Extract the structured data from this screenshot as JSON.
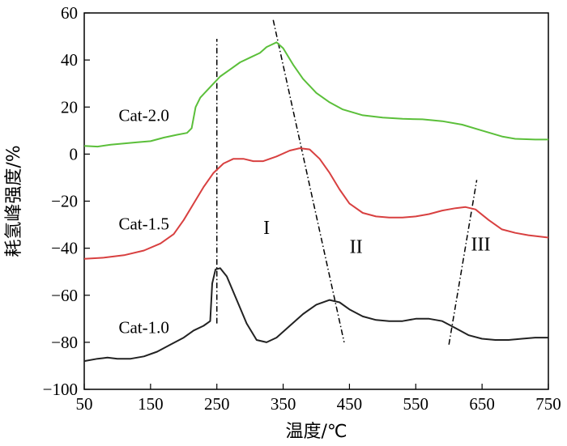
{
  "chart_data": {
    "type": "line",
    "title": "",
    "xlabel": "温度/℃",
    "ylabel": "耗氢峰强度/%",
    "xlim": [
      50,
      750
    ],
    "ylim": [
      -100,
      60
    ],
    "xticks": [
      50,
      150,
      250,
      350,
      450,
      550,
      650,
      750
    ],
    "yticks": [
      -100,
      -80,
      -60,
      -40,
      -20,
      0,
      20,
      40,
      60
    ],
    "grid": false,
    "legend": "none",
    "series": [
      {
        "name": "Cat-2.0",
        "color": "#5bbf3a",
        "points": [
          [
            50,
            3.5
          ],
          [
            70,
            3.2
          ],
          [
            90,
            4.0
          ],
          [
            110,
            4.5
          ],
          [
            130,
            5.0
          ],
          [
            150,
            5.5
          ],
          [
            170,
            7.0
          ],
          [
            190,
            8.2
          ],
          [
            205,
            9.0
          ],
          [
            212,
            11
          ],
          [
            218,
            20
          ],
          [
            225,
            24
          ],
          [
            235,
            27
          ],
          [
            245,
            30
          ],
          [
            255,
            33
          ],
          [
            270,
            36
          ],
          [
            285,
            39
          ],
          [
            300,
            41
          ],
          [
            315,
            43
          ],
          [
            325,
            45.5
          ],
          [
            340,
            47.5
          ],
          [
            350,
            45
          ],
          [
            365,
            38
          ],
          [
            380,
            32
          ],
          [
            400,
            26
          ],
          [
            420,
            22
          ],
          [
            440,
            19
          ],
          [
            470,
            16.5
          ],
          [
            500,
            15.5
          ],
          [
            530,
            15
          ],
          [
            560,
            14.8
          ],
          [
            590,
            14
          ],
          [
            620,
            12.5
          ],
          [
            650,
            10
          ],
          [
            680,
            7.5
          ],
          [
            700,
            6.5
          ],
          [
            730,
            6.2
          ],
          [
            750,
            6.2
          ]
        ]
      },
      {
        "name": "Cat-1.5",
        "color": "#d84040",
        "points": [
          [
            50,
            -44.5
          ],
          [
            80,
            -44
          ],
          [
            110,
            -43
          ],
          [
            140,
            -41
          ],
          [
            165,
            -38
          ],
          [
            185,
            -34
          ],
          [
            200,
            -28
          ],
          [
            215,
            -21
          ],
          [
            230,
            -14
          ],
          [
            245,
            -8
          ],
          [
            260,
            -4
          ],
          [
            275,
            -2
          ],
          [
            290,
            -2
          ],
          [
            305,
            -3
          ],
          [
            320,
            -3
          ],
          [
            340,
            -1
          ],
          [
            360,
            1.5
          ],
          [
            375,
            2.5
          ],
          [
            390,
            2
          ],
          [
            405,
            -2
          ],
          [
            420,
            -8
          ],
          [
            435,
            -15
          ],
          [
            450,
            -21
          ],
          [
            470,
            -25
          ],
          [
            490,
            -26.5
          ],
          [
            510,
            -27
          ],
          [
            530,
            -27
          ],
          [
            550,
            -26.5
          ],
          [
            570,
            -25.5
          ],
          [
            590,
            -24
          ],
          [
            610,
            -23
          ],
          [
            625,
            -22.5
          ],
          [
            640,
            -23.5
          ],
          [
            660,
            -28
          ],
          [
            680,
            -32
          ],
          [
            700,
            -33.5
          ],
          [
            720,
            -34.5
          ],
          [
            750,
            -35.5
          ]
        ]
      },
      {
        "name": "Cat-1.0",
        "color": "#222222",
        "points": [
          [
            50,
            -88
          ],
          [
            70,
            -87
          ],
          [
            85,
            -86.5
          ],
          [
            100,
            -87
          ],
          [
            120,
            -87
          ],
          [
            140,
            -86
          ],
          [
            160,
            -84
          ],
          [
            180,
            -81
          ],
          [
            200,
            -78
          ],
          [
            215,
            -75
          ],
          [
            230,
            -73
          ],
          [
            240,
            -71
          ],
          [
            243,
            -55
          ],
          [
            248,
            -49
          ],
          [
            255,
            -48.5
          ],
          [
            265,
            -52
          ],
          [
            280,
            -62
          ],
          [
            295,
            -72
          ],
          [
            310,
            -79
          ],
          [
            325,
            -80
          ],
          [
            340,
            -78
          ],
          [
            360,
            -73
          ],
          [
            380,
            -68
          ],
          [
            400,
            -64
          ],
          [
            420,
            -62
          ],
          [
            435,
            -63
          ],
          [
            450,
            -66
          ],
          [
            470,
            -69
          ],
          [
            490,
            -70.5
          ],
          [
            510,
            -71
          ],
          [
            530,
            -71
          ],
          [
            550,
            -70
          ],
          [
            570,
            -70
          ],
          [
            590,
            -71
          ],
          [
            610,
            -74
          ],
          [
            630,
            -77
          ],
          [
            650,
            -78.5
          ],
          [
            670,
            -79
          ],
          [
            690,
            -79
          ],
          [
            710,
            -78.5
          ],
          [
            730,
            -78
          ],
          [
            750,
            -78
          ]
        ]
      }
    ],
    "guide_lines": [
      {
        "points": [
          [
            250,
            -72
          ],
          [
            250,
            49
          ]
        ]
      },
      {
        "points": [
          [
            335,
            57
          ],
          [
            442,
            -80
          ]
        ]
      },
      {
        "points": [
          [
            600,
            -81
          ],
          [
            642,
            -11
          ]
        ]
      }
    ],
    "annotations": [
      {
        "text": "Cat-2.0",
        "x": 140,
        "y": 14
      },
      {
        "text": "Cat-1.5",
        "x": 140,
        "y": -32
      },
      {
        "text": "Cat-1.0",
        "x": 140,
        "y": -76
      },
      {
        "text": "I",
        "x": 325,
        "y": -34
      },
      {
        "text": "II",
        "x": 460,
        "y": -42
      },
      {
        "text": "III",
        "x": 648,
        "y": -41
      }
    ]
  }
}
